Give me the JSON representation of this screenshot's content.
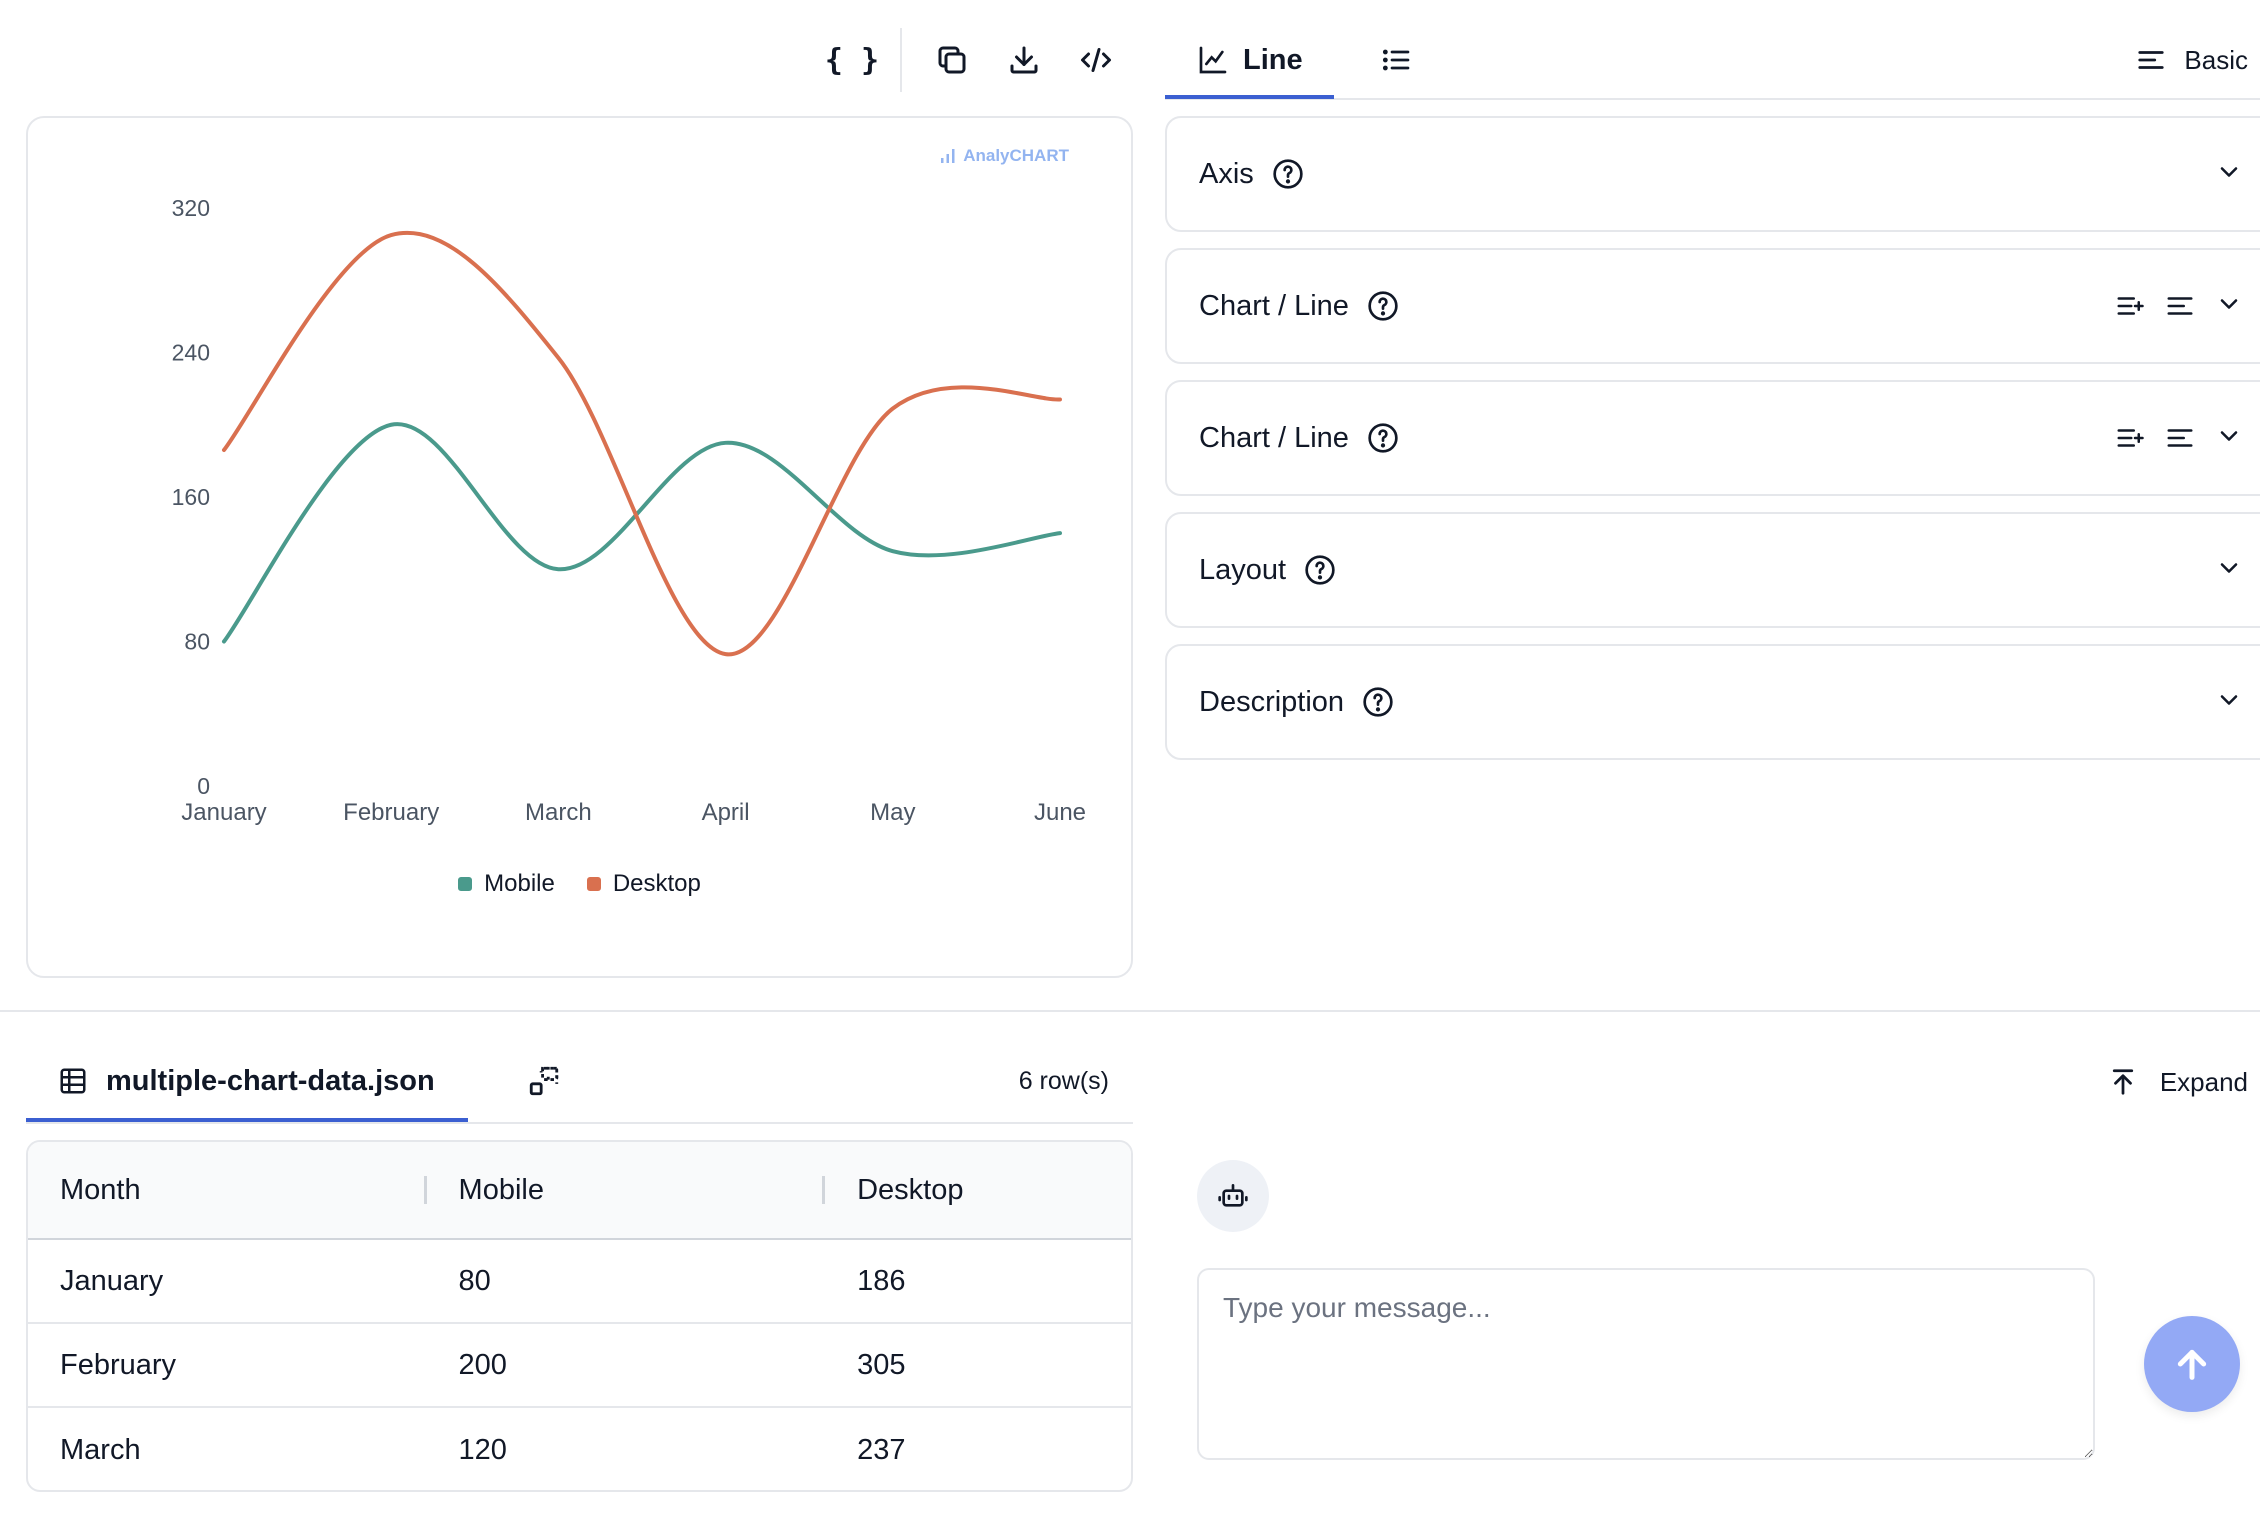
{
  "toolbar": {
    "json_label": "{ }",
    "icons": [
      "braces-icon",
      "copy-icon",
      "download-icon",
      "code-icon"
    ]
  },
  "chart_panel": {
    "brand": "AnalyCHART"
  },
  "chart_data": {
    "type": "line",
    "categories": [
      "January",
      "February",
      "March",
      "April",
      "May",
      "June"
    ],
    "series": [
      {
        "name": "Mobile",
        "values": [
          80,
          200,
          120,
          190,
          130,
          140
        ],
        "color": "#4a9a8c"
      },
      {
        "name": "Desktop",
        "values": [
          186,
          305,
          237,
          73,
          209,
          214
        ],
        "color": "#d9704f"
      }
    ],
    "yticks": [
      "0",
      "80",
      "160",
      "240",
      "320"
    ],
    "ylim": [
      0,
      320
    ],
    "legend": "bottom",
    "grid": false
  },
  "right_tabs": {
    "line_label": "Line",
    "list_icon": "list-icon",
    "basic_label": "Basic"
  },
  "accordions": [
    {
      "title": "Axis",
      "has_actions": false
    },
    {
      "title": "Chart / Line",
      "has_actions": true
    },
    {
      "title": "Chart / Line",
      "has_actions": true
    },
    {
      "title": "Layout",
      "has_actions": false
    },
    {
      "title": "Description",
      "has_actions": false
    }
  ],
  "data_panel": {
    "file_name": "multiple-chart-data.json",
    "row_count": "6 row(s)",
    "expand_label": "Expand",
    "columns": [
      "Month",
      "Mobile",
      "Desktop"
    ],
    "rows": [
      [
        "January",
        "80",
        "186"
      ],
      [
        "February",
        "200",
        "305"
      ],
      [
        "March",
        "120",
        "237"
      ]
    ]
  },
  "chat": {
    "placeholder": "Type your message..."
  },
  "colors": {
    "accent": "#3b5fd1",
    "send_button": "#93a9f5",
    "mobile": "#4a9a8c",
    "desktop": "#d9704f"
  }
}
